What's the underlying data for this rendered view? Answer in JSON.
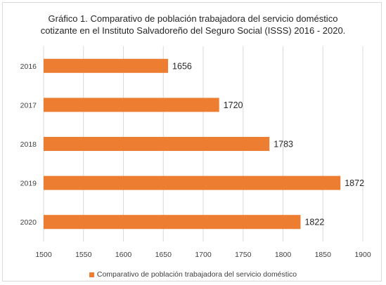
{
  "chart_data": {
    "type": "bar",
    "orientation": "horizontal",
    "title_lines": [
      "Gráfico 1. Comparativo de población trabajadora del servicio doméstico",
      "cotizante en el Instituto Salvadoreño del Seguro Social (ISSS) 2016 - 2020."
    ],
    "categories": [
      "2016",
      "2017",
      "2018",
      "2019",
      "2020"
    ],
    "values": [
      1656,
      1720,
      1783,
      1872,
      1822
    ],
    "xlim": [
      1500,
      1900
    ],
    "xticks": [
      1500,
      1550,
      1600,
      1650,
      1700,
      1750,
      1800,
      1850,
      1900
    ],
    "grid": "vertical",
    "legend_position": "bottom",
    "series": [
      {
        "name": "Comparativo de población trabajadora del servicio doméstico",
        "values": [
          1656,
          1720,
          1783,
          1872,
          1822
        ]
      }
    ],
    "bar_color": "#ed7d31",
    "grid_color": "#d9d9d9"
  }
}
